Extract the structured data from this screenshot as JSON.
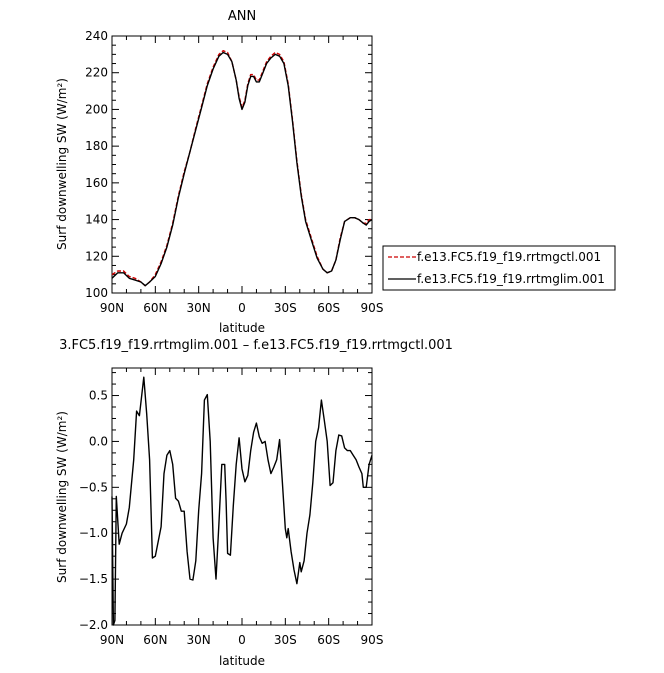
{
  "chart_data": [
    {
      "type": "line",
      "title": "ANN",
      "xlabel": "latitude",
      "ylabel": "Surf downwelling SW (W/m²)",
      "xlim": [
        90,
        -90
      ],
      "ylim": [
        100,
        240
      ],
      "xticks": [
        90,
        60,
        30,
        0,
        -30,
        -60,
        -90
      ],
      "xtick_labels": [
        "90N",
        "60N",
        "30N",
        "0",
        "30S",
        "60S",
        "90S"
      ],
      "yticks": [
        100,
        120,
        140,
        160,
        180,
        200,
        220,
        240
      ],
      "ytick_labels": [
        "100",
        "120",
        "140",
        "160",
        "180",
        "200",
        "220",
        "240"
      ],
      "legend_position": "right",
      "series": [
        {
          "name": "f.e13.FC5.f19_f19.rrtmgctl.001",
          "color": "#cc0000",
          "dash": "dashed",
          "points": [
            [
              90,
              110
            ],
            [
              86,
              112
            ],
            [
              82,
              112
            ],
            [
              78,
              109
            ],
            [
              74,
              108
            ],
            [
              70,
              106
            ],
            [
              67,
              104
            ],
            [
              64,
              106
            ],
            [
              60,
              110
            ],
            [
              56,
              117
            ],
            [
              52,
              126
            ],
            [
              48,
              138
            ],
            [
              44,
              153
            ],
            [
              40,
              166
            ],
            [
              36,
              177
            ],
            [
              32,
              190
            ],
            [
              28,
              202
            ],
            [
              24,
              214
            ],
            [
              20,
              223
            ],
            [
              16,
              230
            ],
            [
              13,
              232
            ],
            [
              10,
              231
            ],
            [
              7,
              226
            ],
            [
              4,
              216
            ],
            [
              2,
              207
            ],
            [
              0,
              201
            ],
            [
              -2,
              205
            ],
            [
              -4,
              214
            ],
            [
              -6,
              219
            ],
            [
              -8,
              219
            ],
            [
              -10,
              216
            ],
            [
              -12,
              216
            ],
            [
              -14,
              220
            ],
            [
              -17,
              226
            ],
            [
              -20,
              229
            ],
            [
              -23,
              231
            ],
            [
              -26,
              230
            ],
            [
              -29,
              226
            ],
            [
              -32,
              214
            ],
            [
              -35,
              194
            ],
            [
              -38,
              172
            ],
            [
              -41,
              154
            ],
            [
              -44,
              140
            ],
            [
              -48,
              130
            ],
            [
              -52,
              120
            ],
            [
              -56,
              113
            ],
            [
              -59,
              111
            ],
            [
              -62,
              112
            ],
            [
              -65,
              118
            ],
            [
              -68,
              130
            ],
            [
              -71,
              139
            ],
            [
              -75,
              141
            ],
            [
              -78,
              141
            ],
            [
              -81,
              140
            ],
            [
              -84,
              138
            ],
            [
              -86,
              138
            ],
            [
              -88,
              140
            ],
            [
              -90,
              140
            ]
          ]
        },
        {
          "name": "f.e13.FC5.f19_f19.rrtmglim.001",
          "color": "#000000",
          "dash": "solid",
          "points": [
            [
              90,
              108
            ],
            [
              86,
              111
            ],
            [
              82,
              111
            ],
            [
              78,
              108
            ],
            [
              74,
              107
            ],
            [
              70,
              106
            ],
            [
              67,
              104
            ],
            [
              64,
              106
            ],
            [
              60,
              109
            ],
            [
              56,
              116
            ],
            [
              52,
              125
            ],
            [
              48,
              137
            ],
            [
              44,
              152
            ],
            [
              40,
              165
            ],
            [
              36,
              177
            ],
            [
              32,
              189
            ],
            [
              28,
              201
            ],
            [
              24,
              213
            ],
            [
              20,
              222
            ],
            [
              16,
              229
            ],
            [
              13,
              231
            ],
            [
              10,
              230
            ],
            [
              7,
              226
            ],
            [
              4,
              216
            ],
            [
              2,
              206
            ],
            [
              0,
              200
            ],
            [
              -2,
              204
            ],
            [
              -4,
              213
            ],
            [
              -6,
              218
            ],
            [
              -8,
              218
            ],
            [
              -10,
              215
            ],
            [
              -12,
              215
            ],
            [
              -14,
              219
            ],
            [
              -17,
              225
            ],
            [
              -20,
              228
            ],
            [
              -23,
              230
            ],
            [
              -26,
              229
            ],
            [
              -29,
              225
            ],
            [
              -32,
              213
            ],
            [
              -35,
              193
            ],
            [
              -38,
              171
            ],
            [
              -41,
              153
            ],
            [
              -44,
              139
            ],
            [
              -48,
              129
            ],
            [
              -52,
              119
            ],
            [
              -56,
              113
            ],
            [
              -59,
              111
            ],
            [
              -62,
              112
            ],
            [
              -65,
              118
            ],
            [
              -68,
              129
            ],
            [
              -71,
              139
            ],
            [
              -75,
              141
            ],
            [
              -78,
              141
            ],
            [
              -81,
              140
            ],
            [
              -84,
              138
            ],
            [
              -86,
              137
            ],
            [
              -88,
              139
            ],
            [
              -90,
              140
            ]
          ]
        }
      ]
    },
    {
      "type": "line",
      "title": "3.FC5.f19_f19.rrtmglim.001 – f.e13.FC5.f19_f19.rrtmgctl.001",
      "xlabel": "latitude",
      "ylabel": "Surf downwelling SW (W/m²)",
      "xlim": [
        90,
        -90
      ],
      "ylim": [
        -2.0,
        0.8
      ],
      "xticks": [
        90,
        60,
        30,
        0,
        -30,
        -60,
        -90
      ],
      "xtick_labels": [
        "90N",
        "60N",
        "30N",
        "0",
        "30S",
        "60S",
        "90S"
      ],
      "yticks": [
        -2.0,
        -1.5,
        -1.0,
        -0.5,
        0.0,
        0.5
      ],
      "ytick_labels": [
        "−2.0",
        "−1.5",
        "−1.0",
        "−0.5",
        "0.0",
        "0.5"
      ],
      "series": [
        {
          "color": "#000000",
          "dash": "solid",
          "points": [
            [
              90,
              -0.6
            ],
            [
              89,
              -2.0
            ],
            [
              88,
              -1.95
            ],
            [
              87,
              -0.6
            ],
            [
              85,
              -1.12
            ],
            [
              83,
              -1.0
            ],
            [
              80,
              -0.9
            ],
            [
              78,
              -0.72
            ],
            [
              75,
              -0.2
            ],
            [
              73,
              0.33
            ],
            [
              71,
              0.28
            ],
            [
              68,
              0.7
            ],
            [
              66,
              0.3
            ],
            [
              64,
              -0.2
            ],
            [
              62,
              -1.27
            ],
            [
              60,
              -1.25
            ],
            [
              56,
              -0.93
            ],
            [
              54,
              -0.35
            ],
            [
              52,
              -0.15
            ],
            [
              50,
              -0.1
            ],
            [
              48,
              -0.25
            ],
            [
              46,
              -0.62
            ],
            [
              44,
              -0.65
            ],
            [
              42,
              -0.76
            ],
            [
              40,
              -0.76
            ],
            [
              38,
              -1.2
            ],
            [
              36,
              -1.5
            ],
            [
              34,
              -1.51
            ],
            [
              32,
              -1.3
            ],
            [
              30,
              -0.75
            ],
            [
              28,
              -0.35
            ],
            [
              26,
              0.45
            ],
            [
              24,
              0.51
            ],
            [
              22,
              0.0
            ],
            [
              20,
              -1.05
            ],
            [
              18,
              -1.5
            ],
            [
              16,
              -0.9
            ],
            [
              14,
              -0.25
            ],
            [
              12,
              -0.25
            ],
            [
              11,
              -0.65
            ],
            [
              10,
              -1.22
            ],
            [
              8,
              -1.24
            ],
            [
              6,
              -0.7
            ],
            [
              4,
              -0.25
            ],
            [
              2,
              0.04
            ],
            [
              0,
              -0.3
            ],
            [
              -2,
              -0.44
            ],
            [
              -4,
              -0.37
            ],
            [
              -6,
              -0.1
            ],
            [
              -8,
              0.1
            ],
            [
              -10,
              0.2
            ],
            [
              -12,
              0.05
            ],
            [
              -14,
              -0.02
            ],
            [
              -16,
              0.0
            ],
            [
              -18,
              -0.2
            ],
            [
              -20,
              -0.35
            ],
            [
              -22,
              -0.28
            ],
            [
              -24,
              -0.2
            ],
            [
              -26,
              0.02
            ],
            [
              -28,
              -0.45
            ],
            [
              -30,
              -0.95
            ],
            [
              -31,
              -1.05
            ],
            [
              -32,
              -0.95
            ],
            [
              -34,
              -1.2
            ],
            [
              -36,
              -1.4
            ],
            [
              -38,
              -1.55
            ],
            [
              -40,
              -1.32
            ],
            [
              -41,
              -1.42
            ],
            [
              -43,
              -1.3
            ],
            [
              -45,
              -1.0
            ],
            [
              -47,
              -0.8
            ],
            [
              -49,
              -0.45
            ],
            [
              -51,
              0.0
            ],
            [
              -53,
              0.15
            ],
            [
              -55,
              0.45
            ],
            [
              -57,
              0.23
            ],
            [
              -59,
              0.0
            ],
            [
              -61,
              -0.48
            ],
            [
              -63,
              -0.45
            ],
            [
              -65,
              -0.1
            ],
            [
              -67,
              0.07
            ],
            [
              -69,
              0.06
            ],
            [
              -71,
              -0.07
            ],
            [
              -73,
              -0.1
            ],
            [
              -75,
              -0.1
            ],
            [
              -77,
              -0.15
            ],
            [
              -79,
              -0.2
            ],
            [
              -81,
              -0.28
            ],
            [
              -83,
              -0.35
            ],
            [
              -84,
              -0.5
            ],
            [
              -86,
              -0.5
            ],
            [
              -88,
              -0.25
            ],
            [
              -90,
              -0.15
            ]
          ]
        }
      ]
    }
  ]
}
